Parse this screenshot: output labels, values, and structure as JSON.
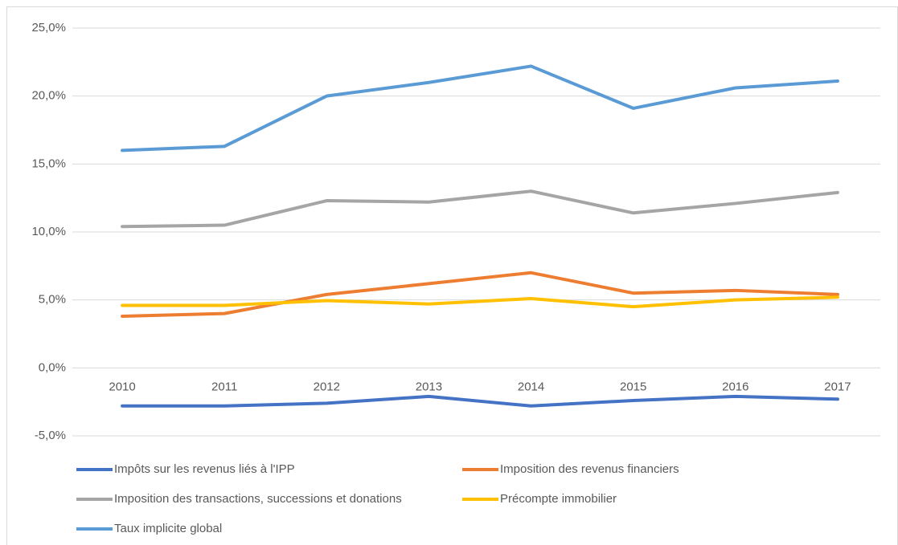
{
  "chart_data": {
    "type": "line",
    "categories": [
      "2010",
      "2011",
      "2012",
      "2013",
      "2014",
      "2015",
      "2016",
      "2017"
    ],
    "series": [
      {
        "name": "Impôts sur les revenus liés à l'IPP",
        "color": "#4472c4",
        "values": [
          -2.8,
          -2.8,
          -2.6,
          -2.1,
          -2.8,
          -2.4,
          -2.1,
          -2.3
        ]
      },
      {
        "name": "Imposition des revenus financiers",
        "color": "#ed7d31",
        "values": [
          3.8,
          4.0,
          5.4,
          6.2,
          7.0,
          5.5,
          5.7,
          5.4
        ]
      },
      {
        "name": "Imposition des transactions, successions et donations",
        "color": "#a5a5a5",
        "values": [
          10.4,
          10.5,
          12.3,
          12.2,
          13.0,
          11.4,
          12.1,
          12.9
        ]
      },
      {
        "name": "Précompte immobilier",
        "color": "#ffc000",
        "values": [
          4.6,
          4.6,
          4.95,
          4.7,
          5.1,
          4.5,
          5.0,
          5.2
        ]
      },
      {
        "name": "Taux implicite global",
        "color": "#5b9bd5",
        "values": [
          16.0,
          16.3,
          20.0,
          21.0,
          22.2,
          19.1,
          20.6,
          21.1
        ]
      }
    ],
    "ylim": [
      -5,
      25
    ],
    "yticks": [
      {
        "value": -5,
        "label": "-5,0%"
      },
      {
        "value": 0,
        "label": "0,0%"
      },
      {
        "value": 5,
        "label": "5,0%"
      },
      {
        "value": 10,
        "label": "10,0%"
      },
      {
        "value": 15,
        "label": "15,0%"
      },
      {
        "value": 20,
        "label": "20,0%"
      },
      {
        "value": 25,
        "label": "25,0%"
      }
    ],
    "grid": true,
    "legend": "bottom"
  }
}
